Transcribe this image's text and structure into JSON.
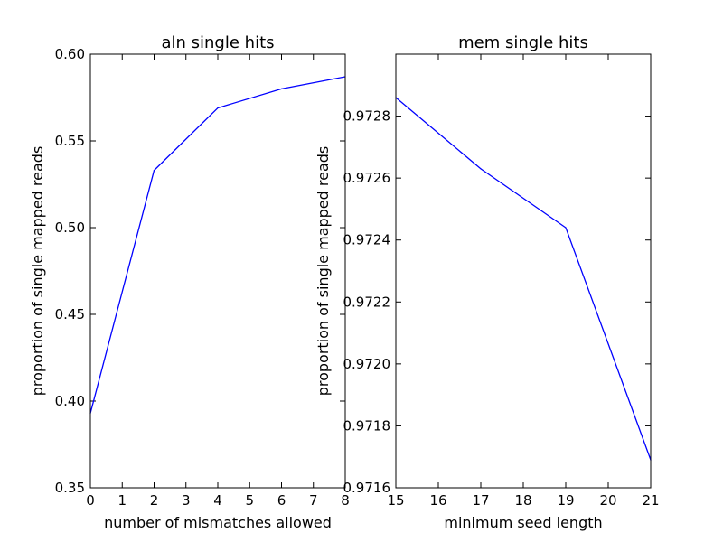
{
  "chart_data": [
    {
      "type": "line",
      "title": "aln single hits",
      "xlabel": "number of mismatches allowed",
      "ylabel": "proportion of single mapped reads",
      "xlim": [
        0,
        8
      ],
      "ylim": [
        0.35,
        0.6
      ],
      "xticks": [
        0,
        1,
        2,
        3,
        4,
        5,
        6,
        7,
        8
      ],
      "xtick_labels": [
        "0",
        "1",
        "2",
        "3",
        "4",
        "5",
        "6",
        "7",
        "8"
      ],
      "yticks": [
        0.35,
        0.4,
        0.45,
        0.5,
        0.55,
        0.6
      ],
      "ytick_labels": [
        "0.35",
        "0.40",
        "0.45",
        "0.50",
        "0.55",
        "0.60"
      ],
      "grid": false,
      "series": [
        {
          "color": "#0000ff",
          "x": [
            0,
            2,
            4,
            6,
            8
          ],
          "y": [
            0.393,
            0.533,
            0.569,
            0.58,
            0.587
          ]
        }
      ]
    },
    {
      "type": "line",
      "title": "mem single hits",
      "xlabel": "minimum seed length",
      "ylabel": "proportion of single mapped reads",
      "xlim": [
        15,
        21
      ],
      "ylim": [
        0.9716,
        0.973
      ],
      "xticks": [
        15,
        16,
        17,
        18,
        19,
        20,
        21
      ],
      "xtick_labels": [
        "15",
        "16",
        "17",
        "18",
        "19",
        "20",
        "21"
      ],
      "yticks": [
        0.9716,
        0.9718,
        0.972,
        0.9722,
        0.9724,
        0.9726,
        0.9728
      ],
      "ytick_labels": [
        "0.9716",
        "0.9718",
        "0.9720",
        "0.9722",
        "0.9724",
        "0.9726",
        "0.9728"
      ],
      "grid": false,
      "series": [
        {
          "color": "#0000ff",
          "x": [
            15,
            17,
            19,
            21
          ],
          "y": [
            0.97286,
            0.97263,
            0.97244,
            0.97169
          ]
        }
      ]
    }
  ]
}
